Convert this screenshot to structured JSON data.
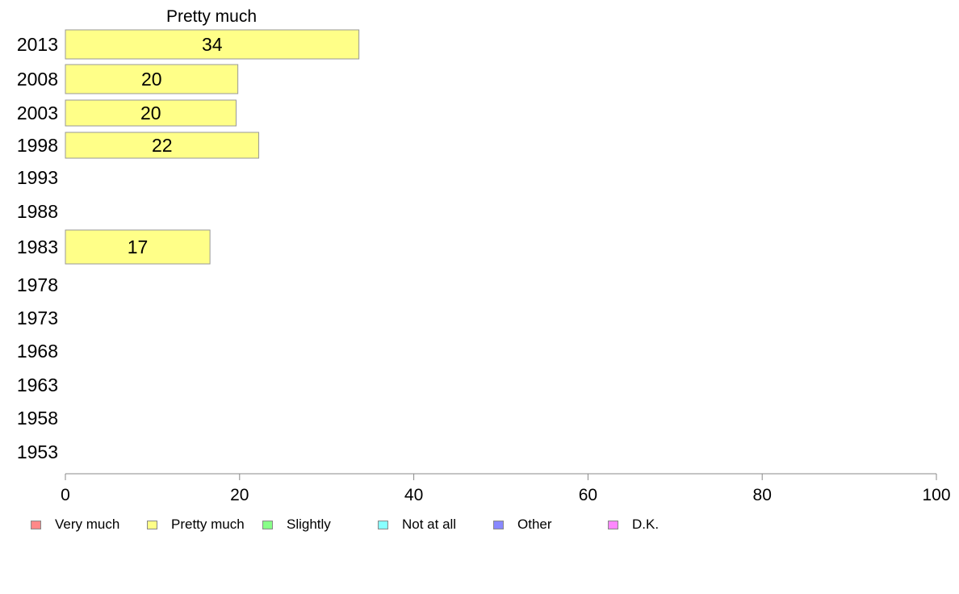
{
  "chart_data": {
    "type": "bar",
    "orientation": "horizontal",
    "title": "Pretty much",
    "categories": [
      "2013",
      "2008",
      "2003",
      "1998",
      "1993",
      "1988",
      "1983",
      "1978",
      "1973",
      "1968",
      "1963",
      "1958",
      "1953"
    ],
    "series": [
      {
        "name": "Pretty much",
        "color": "#ffff88",
        "values": [
          33.7,
          19.8,
          19.6,
          22.2,
          null,
          null,
          16.6,
          null,
          null,
          null,
          null,
          null,
          null
        ],
        "labels": [
          "34",
          "20",
          "20",
          "22",
          "",
          "",
          "17",
          "",
          "",
          "",
          "",
          "",
          ""
        ]
      }
    ],
    "xlim": [
      0,
      100
    ],
    "xticks": [
      "0",
      "20",
      "40",
      "60",
      "80",
      "100"
    ],
    "legend": {
      "placement": "bottom",
      "items": [
        {
          "label": "Very much",
          "color": "#ff8888"
        },
        {
          "label": "Pretty much",
          "color": "#ffff88"
        },
        {
          "label": "Slightly",
          "color": "#88ff88"
        },
        {
          "label": "Not at all",
          "color": "#88ffff"
        },
        {
          "label": "Other",
          "color": "#8888ff"
        },
        {
          "label": "D.K.",
          "color": "#ff88ff"
        }
      ]
    },
    "grid": false
  }
}
